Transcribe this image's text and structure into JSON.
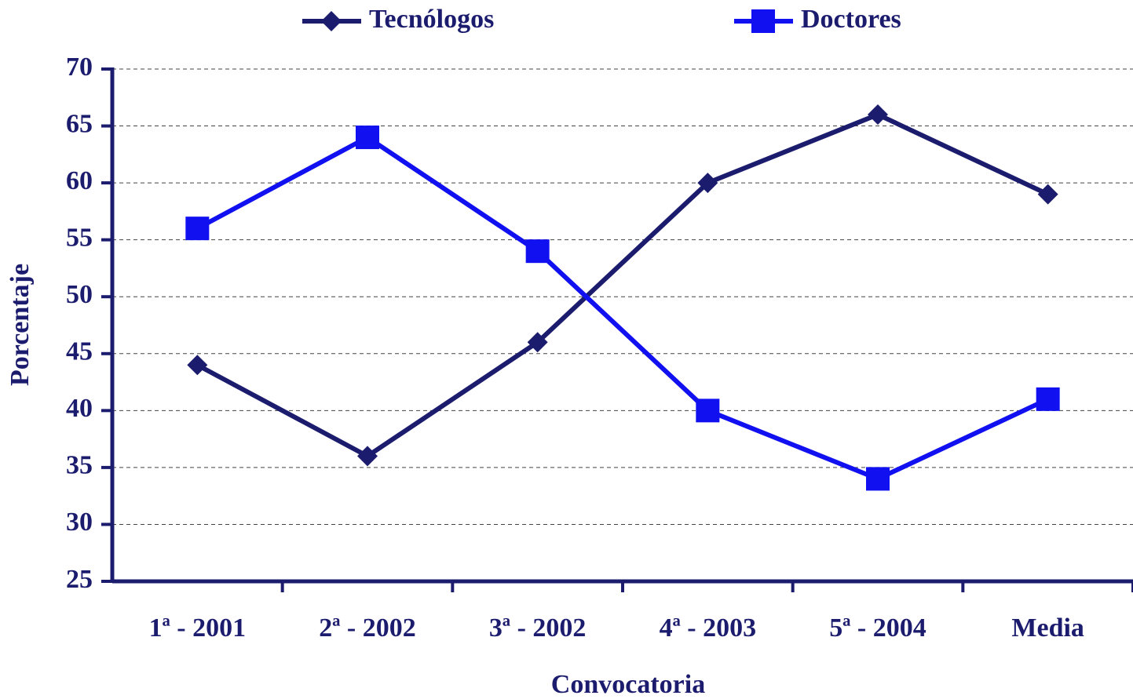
{
  "chart_data": {
    "type": "line",
    "x_label": "Convocatoria",
    "y_label": "Porcentaje",
    "categories": [
      "1ª - 2001",
      "2ª - 2002",
      "3ª - 2002",
      "4ª - 2003",
      "5ª - 2004",
      "Media"
    ],
    "series": [
      {
        "name": "Tecnólogos",
        "color": "#1c1c6e",
        "marker": "diamond",
        "values": [
          44,
          36,
          46,
          60,
          66,
          59
        ]
      },
      {
        "name": "Doctores",
        "color": "#1010f0",
        "marker": "square",
        "values": [
          56,
          64,
          54,
          40,
          34,
          41
        ]
      }
    ],
    "ylim": [
      25,
      70
    ],
    "yticks": [
      25,
      30,
      35,
      40,
      45,
      50,
      55,
      60,
      65,
      70
    ],
    "grid": true,
    "legend": "top"
  }
}
